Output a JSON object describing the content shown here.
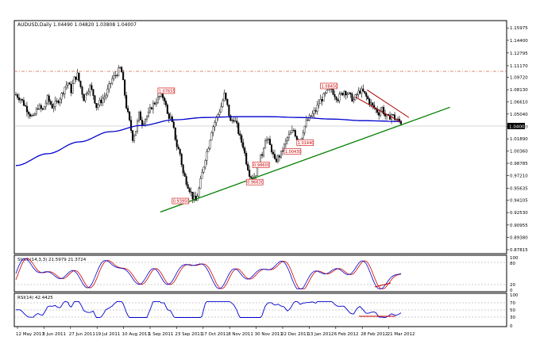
{
  "header": {
    "symbol_line": "AUDUSD,Daily  1.04490 1.04820 1.03808 1.04007"
  },
  "price_axis": {
    "labels": [
      "1.15975",
      "1.14400",
      "1.12795",
      "1.11170",
      "1.09720",
      "1.08130",
      "1.06610",
      "1.05040",
      "1.04007",
      "1.03460",
      "1.01890",
      "1.00360",
      "0.98785",
      "0.97210",
      "0.95635",
      "0.94105",
      "0.92530",
      "0.90955",
      "0.89380",
      "0.87815"
    ],
    "current_price": "1.04007",
    "range": [
      0.87815,
      1.165
    ]
  },
  "time_axis": {
    "labels": [
      "12 May 2011",
      "3 Jun 2011",
      "27 Jun 2011",
      "19 Jul 2011",
      "10 Aug 2011",
      "1 Sep 2011",
      "23 Sep 2011",
      "17 Oct 2011",
      "8 Nov 2011",
      "30 Nov 2011",
      "22 Dec 2011",
      "13 Jan 2012",
      "6 Feb 2012",
      "28 Feb 2012",
      "21 Mar 2012"
    ]
  },
  "annotations": [
    {
      "text": "1.07655",
      "color": "#cc0000"
    },
    {
      "text": "0.93950",
      "color": "#cc0000"
    },
    {
      "text": "0.96630",
      "color": "#cc0000"
    },
    {
      "text": "0.98600",
      "color": "#cc0000"
    },
    {
      "text": "1.00430",
      "color": "#cc0000"
    },
    {
      "text": "1.01440",
      "color": "#cc0000"
    },
    {
      "text": "1.08450",
      "color": "#cc0000"
    }
  ],
  "stoch": {
    "label": "Stoch(14,3,3) 21.5979 21.3724",
    "scale": [
      "100",
      "80",
      "20",
      "0"
    ]
  },
  "rsi": {
    "label": "RSI(14) 42.4425",
    "scale": [
      "100",
      "70",
      "50",
      "30",
      "0"
    ]
  },
  "colors": {
    "ma": "#0000cc",
    "trendline": "#008000",
    "channel": "#aa0000",
    "stoch_main": "#0000cc",
    "stoch_signal": "#cc0000",
    "rsi": "#0000cc",
    "price_marker_bg": "#000000"
  },
  "chart_data": {
    "type": "candlestick",
    "title": "AUDUSD,Daily",
    "ohlc_last": {
      "open": 1.0449,
      "high": 1.0482,
      "low": 1.03808,
      "close": 1.04007
    },
    "ylim": [
      0.87815,
      1.165
    ],
    "close_path": [
      [
        0,
        1.075
      ],
      [
        6,
        1.07
      ],
      [
        12,
        1.06
      ],
      [
        18,
        1.05
      ],
      [
        22,
        1.045
      ],
      [
        28,
        1.06
      ],
      [
        34,
        1.055
      ],
      [
        40,
        1.07
      ],
      [
        46,
        1.06
      ],
      [
        52,
        1.065
      ],
      [
        58,
        1.075
      ],
      [
        62,
        1.085
      ],
      [
        66,
        1.09
      ],
      [
        70,
        1.08
      ],
      [
        74,
        1.095
      ],
      [
        78,
        1.1
      ],
      [
        82,
        1.085
      ],
      [
        86,
        1.07
      ],
      [
        90,
        1.08
      ],
      [
        94,
        1.085
      ],
      [
        98,
        1.075
      ],
      [
        102,
        1.06
      ],
      [
        106,
        1.065
      ],
      [
        110,
        1.07
      ],
      [
        114,
        1.075
      ],
      [
        118,
        1.085
      ],
      [
        122,
        1.095
      ],
      [
        126,
        1.1
      ],
      [
        130,
        1.105
      ],
      [
        133,
        1.11
      ],
      [
        136,
        1.09
      ],
      [
        140,
        1.06
      ],
      [
        144,
        1.04
      ],
      [
        148,
        1.02
      ],
      [
        152,
        1.03
      ],
      [
        156,
        1.05
      ],
      [
        160,
        1.04
      ],
      [
        164,
        1.045
      ],
      [
        168,
        1.05
      ],
      [
        172,
        1.06
      ],
      [
        176,
        1.065
      ],
      [
        180,
        1.07
      ],
      [
        184,
        1.075
      ],
      [
        188,
        1.07
      ],
      [
        192,
        1.05
      ],
      [
        196,
        1.045
      ],
      [
        200,
        1.03
      ],
      [
        204,
        1.01
      ],
      [
        208,
        1.0
      ],
      [
        212,
        0.975
      ],
      [
        216,
        0.965
      ],
      [
        220,
        0.955
      ],
      [
        224,
        0.945
      ],
      [
        228,
        0.94
      ],
      [
        232,
        0.955
      ],
      [
        236,
        0.975
      ],
      [
        240,
        0.995
      ],
      [
        244,
        1.01
      ],
      [
        248,
        1.03
      ],
      [
        252,
        1.04
      ],
      [
        256,
        1.05
      ],
      [
        260,
        1.06
      ],
      [
        264,
        1.075
      ],
      [
        268,
        1.06
      ],
      [
        272,
        1.04
      ],
      [
        276,
        1.045
      ],
      [
        280,
        1.035
      ],
      [
        284,
        1.02
      ],
      [
        288,
        1.01
      ],
      [
        292,
        0.99
      ],
      [
        296,
        0.975
      ],
      [
        300,
        0.968
      ],
      [
        304,
        0.975
      ],
      [
        308,
        0.99
      ],
      [
        312,
        1.0
      ],
      [
        316,
        1.02
      ],
      [
        320,
        1.015
      ],
      [
        324,
        1.005
      ],
      [
        328,
        0.99
      ],
      [
        332,
        0.995
      ],
      [
        336,
        1.0
      ],
      [
        340,
        1.01
      ],
      [
        344,
        1.02
      ],
      [
        348,
        1.025
      ],
      [
        352,
        1.03
      ],
      [
        356,
        1.02
      ],
      [
        360,
        1.015
      ],
      [
        364,
        1.03
      ],
      [
        368,
        1.04
      ],
      [
        372,
        1.045
      ],
      [
        376,
        1.05
      ],
      [
        380,
        1.055
      ],
      [
        384,
        1.065
      ],
      [
        388,
        1.07
      ],
      [
        392,
        1.075
      ],
      [
        396,
        1.08
      ],
      [
        400,
        1.082
      ],
      [
        404,
        1.075
      ],
      [
        408,
        1.07
      ],
      [
        412,
        1.075
      ],
      [
        416,
        1.08
      ],
      [
        420,
        1.077
      ],
      [
        424,
        1.072
      ],
      [
        428,
        1.068
      ],
      [
        432,
        1.075
      ],
      [
        436,
        1.08
      ],
      [
        440,
        1.078
      ],
      [
        444,
        1.072
      ],
      [
        448,
        1.066
      ],
      [
        452,
        1.06
      ],
      [
        456,
        1.056
      ],
      [
        460,
        1.052
      ],
      [
        464,
        1.058
      ],
      [
        468,
        1.048
      ],
      [
        472,
        1.045
      ],
      [
        476,
        1.05
      ],
      [
        480,
        1.045
      ],
      [
        484,
        1.042
      ],
      [
        488,
        1.04
      ]
    ],
    "ma_path": [
      [
        0,
        0.985
      ],
      [
        40,
        1.0
      ],
      [
        80,
        1.015
      ],
      [
        120,
        1.028
      ],
      [
        160,
        1.036
      ],
      [
        200,
        1.043
      ],
      [
        240,
        1.046
      ],
      [
        280,
        1.047
      ],
      [
        320,
        1.047
      ],
      [
        360,
        1.046
      ],
      [
        400,
        1.044
      ],
      [
        440,
        1.042
      ],
      [
        488,
        1.041
      ]
    ],
    "trendline": [
      [
        183,
        0.926
      ],
      [
        550,
        1.059
      ]
    ],
    "channel_upper": [
      [
        445,
        1.081
      ],
      [
        498,
        1.046
      ]
    ],
    "channel_lower": [
      [
        430,
        1.072
      ],
      [
        488,
        1.04
      ]
    ]
  }
}
